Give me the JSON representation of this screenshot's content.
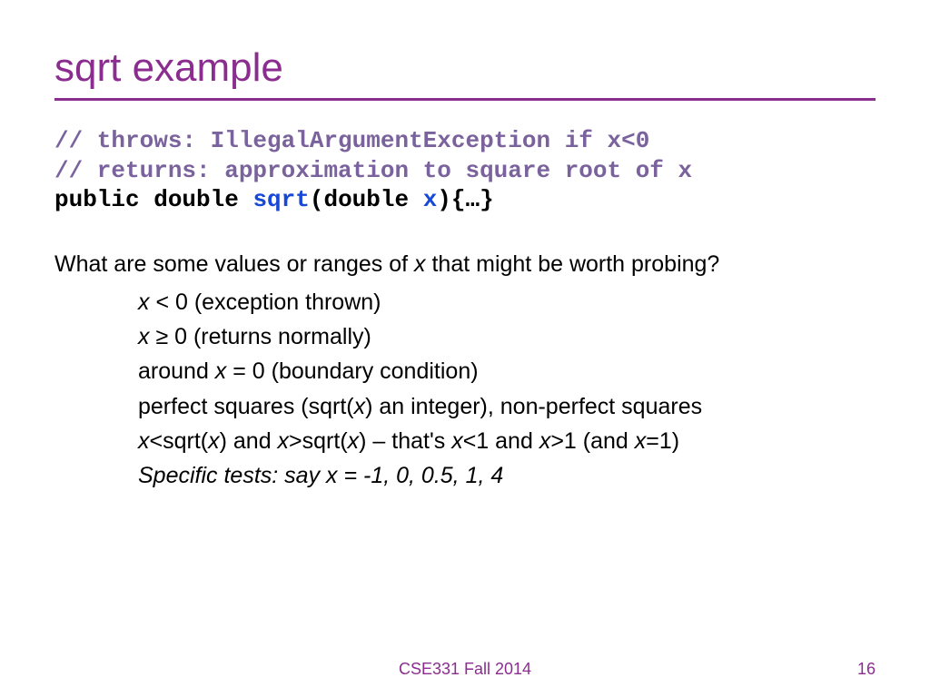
{
  "title": "sqrt example",
  "code": {
    "line1": "// throws: IllegalArgumentException if x<0",
    "line2": "// returns: approximation to square root of x",
    "sig_pre": "public double ",
    "sig_name": "sqrt",
    "sig_mid": "(double ",
    "sig_arg": "x",
    "sig_post": "){…}"
  },
  "question_pre": "What are some values or ranges of ",
  "question_var": "x",
  "question_post": " that might be worth probing?",
  "b1_var": "x",
  "b1_rest": " < 0 (exception thrown)",
  "b2_var": "x",
  "b2_rest": " ≥ 0 (returns normally)",
  "b3_pre": "around ",
  "b3_var": "x",
  "b3_post": " = 0 (boundary condition)",
  "b4_pre": "perfect squares (sqrt(",
  "b4_var": "x",
  "b4_post": ") an integer), non-perfect squares",
  "b5_v1": "x",
  "b5_t1": "<sqrt(",
  "b5_v2": "x",
  "b5_t2": ") and ",
  "b5_v3": "x",
  "b5_t3": ">sqrt(",
  "b5_v4": "x",
  "b5_t4": ") – that's ",
  "b5_v5": "x",
  "b5_t5": "<1 and ",
  "b5_v6": "x",
  "b5_t6": ">1 (and ",
  "b5_v7": "x",
  "b5_t7": "=1)",
  "b6": "Specific tests: say x = -1, 0, 0.5, 1, 4",
  "footer": "CSE331 Fall 2014",
  "page": "16"
}
